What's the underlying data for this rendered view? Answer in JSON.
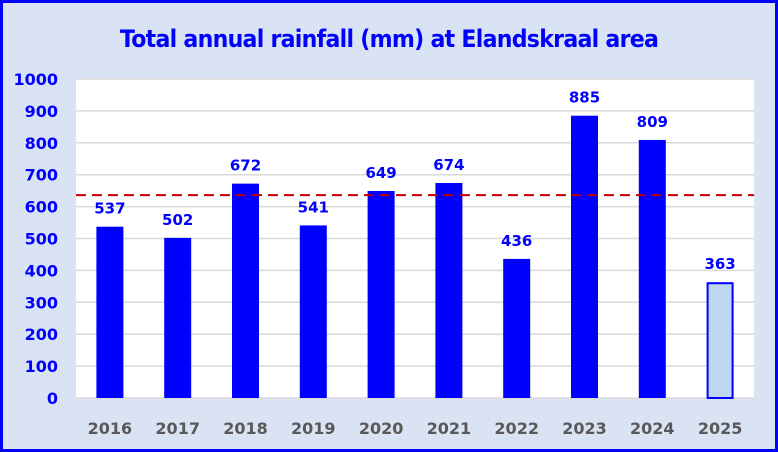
{
  "chart_data": {
    "type": "bar",
    "title": "Total annual rainfall (mm) at Elandskraal area",
    "xlabel": "",
    "ylabel": "",
    "categories": [
      "2016",
      "2017",
      "2018",
      "2019",
      "2020",
      "2021",
      "2022",
      "2023",
      "2024",
      "2025"
    ],
    "values": [
      537,
      502,
      672,
      541,
      649,
      674,
      436,
      885,
      809,
      363
    ],
    "data_labels": [
      "537",
      "502",
      "672",
      "541",
      "649",
      "674",
      "436",
      "885",
      "809",
      "363"
    ],
    "highlighted": [
      false,
      false,
      false,
      false,
      false,
      false,
      false,
      false,
      false,
      true
    ],
    "ylim": [
      0,
      1000
    ],
    "yticks": [
      0,
      100,
      200,
      300,
      400,
      500,
      600,
      700,
      800,
      900,
      1000
    ],
    "ytick_labels": [
      "0",
      "100",
      "200",
      "300",
      "400",
      "500",
      "600",
      "700",
      "800",
      "900",
      "1000"
    ],
    "grid": true,
    "reference_line": {
      "value": 636,
      "style": "dashed",
      "color": "#C00000"
    },
    "colors": {
      "bar": "#0000FF",
      "bar_highlight_fill": "#BDD7EE",
      "bar_highlight_edge": "#0000FF",
      "title": "#0000FF",
      "ytick": "#0000FF",
      "xtick": "#595959",
      "grid": "#D9D9D9",
      "plot_bg": "#FFFFFF",
      "chart_bg": "#DAE3F3",
      "border": "#0000FF"
    }
  }
}
